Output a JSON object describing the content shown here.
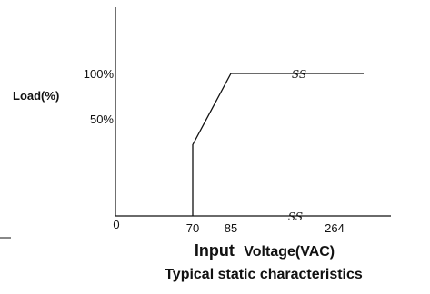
{
  "chart_data": {
    "type": "line",
    "title": "Typical static characteristics",
    "xlabel_main": "Input",
    "xlabel_rest": "Voltage(VAC)",
    "ylabel": "Load(%)",
    "x_ticks": [
      "0",
      "70",
      "85",
      "264"
    ],
    "y_ticks": [
      "50%",
      "100%"
    ],
    "axis_break_label": "SS",
    "series": [
      {
        "points": [
          [
            70,
            0
          ],
          [
            70,
            50
          ],
          [
            85,
            100
          ],
          [
            264,
            100
          ]
        ]
      }
    ],
    "grid": false
  }
}
